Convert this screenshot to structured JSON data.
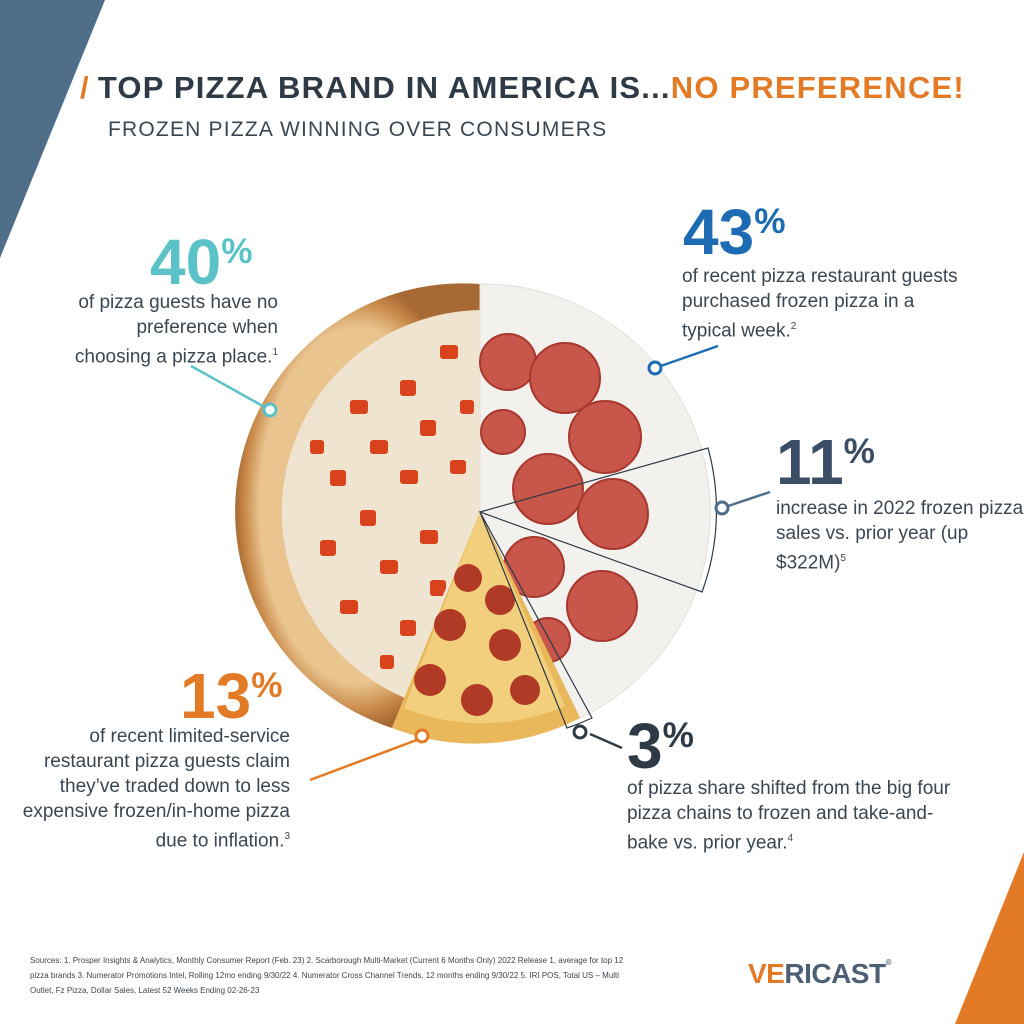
{
  "title": {
    "prefix": "TOP PIZZA BRAND IN AMERICA IS...",
    "accent": "NO PREFERENCE!"
  },
  "subtitle": "FROZEN PIZZA WINNING OVER CONSUMERS",
  "stats": {
    "s40": {
      "value": "40",
      "pct": "%",
      "text": "of pizza guests have no preference when choosing a pizza place.",
      "ref": "1"
    },
    "s43": {
      "value": "43",
      "pct": "%",
      "text": "of recent pizza restaurant guests purchased frozen pizza in a typical week.",
      "ref": "2"
    },
    "s11": {
      "value": "11",
      "pct": "%",
      "text": "increase in 2022 frozen pizza sales vs. prior year (up $322M)",
      "ref": "5"
    },
    "s13": {
      "value": "13",
      "pct": "%",
      "text": "of recent limited-service restaurant pizza guests claim they’ve traded down to less expensive frozen/in-home pizza due to inflation.",
      "ref": "3"
    },
    "s3": {
      "value": "3",
      "pct": "%",
      "text": "of pizza share shifted from the big four pizza chains to frozen and take-and-bake vs. prior year.",
      "ref": "4"
    }
  },
  "sources": {
    "label": "Sources:",
    "text": "1. Prosper Insights & Analytics, Monthly Consumer Report (Feb. 23)  2. Scarborough Multi-Market (Current 6 Months Only) 2022 Release 1, average for top 12 pizza brands 3. Numerator Promotions Intel, Rolling 12mo ending 9/30/22 4. Numerator Cross Channel Trends, 12 months ending 9/30/22  5. IRI POS, Total US – Multi Outlet, Fz Pizza, Dollar Sales, Latest 52 Weeks Ending 02-26-23"
  },
  "logo": {
    "accent": "VE",
    "rest": "RICAST",
    "tm": "®"
  },
  "colors": {
    "orange": "#e27a26",
    "teal": "#5bc3c8",
    "blue": "#1c6bb3",
    "slate": "#3c4e66",
    "dark": "#2e3a46"
  }
}
